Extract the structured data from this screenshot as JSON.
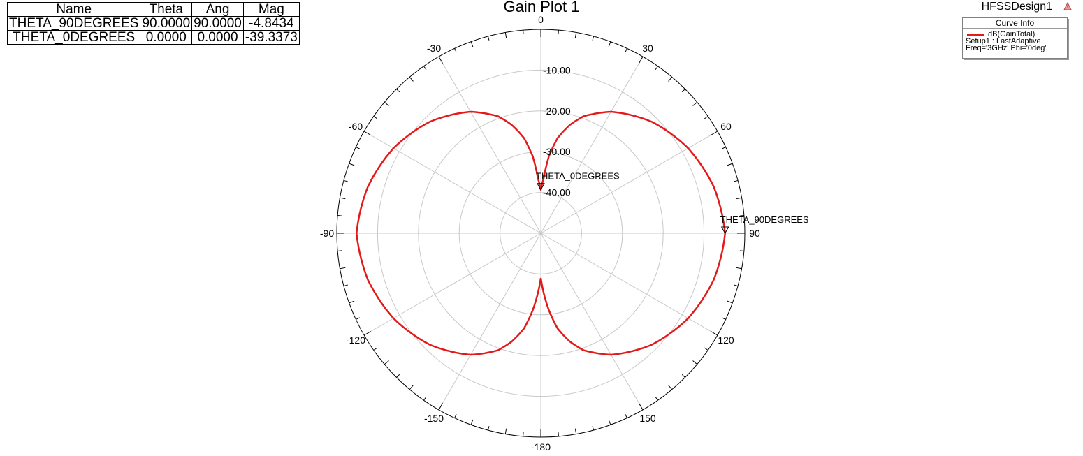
{
  "header": {
    "title": "Gain Plot 1",
    "design_name": "HFSSDesign1",
    "design_icon": "hfss-triangle-icon"
  },
  "marker_table": {
    "columns": [
      "Name",
      "Theta",
      "Ang",
      "Mag"
    ],
    "rows": [
      [
        "THETA_90DEGREES",
        "90.0000",
        "90.0000",
        "-4.8434"
      ],
      [
        "THETA_0DEGREES",
        "0.0000",
        "0.0000",
        "-39.3373"
      ]
    ]
  },
  "curve_info": {
    "header": "Curve Info",
    "curve_name": "dB(GainTotal)",
    "setup": "Setup1 : LastAdaptive",
    "freq": "Freq='3GHz' Phi='0deg'",
    "color": "#e31a1a"
  },
  "chart_data": {
    "type": "polar-line",
    "title": "Gain Plot 1",
    "radial_range": [
      -50,
      0
    ],
    "radial_ticks": [
      -40,
      -30,
      -20,
      -10
    ],
    "radial_tick_labels": [
      "-40.00",
      "-30.00",
      "-20.00",
      "-10.00"
    ],
    "angular_ticks": [
      0,
      30,
      60,
      90,
      120,
      150,
      180,
      -150,
      -120,
      -90,
      -60,
      -30
    ],
    "angular_tick_labels": [
      "0",
      "30",
      "60",
      "90",
      "120",
      "150",
      "-180",
      "-150",
      "-120",
      "-90",
      "-60",
      "-30"
    ],
    "grid": true,
    "series": [
      {
        "name": "dB(GainTotal)",
        "color": "#e31a1a",
        "theta_deg": [
          0,
          3,
          6,
          10,
          15,
          20,
          30,
          45,
          60,
          75,
          90,
          105,
          120,
          135,
          150,
          160,
          165,
          170,
          174,
          177,
          180
        ],
        "gain_db": [
          -39.3373,
          -36.5,
          -31.0,
          -26.3,
          -22.5,
          -19.5,
          -15.6,
          -11.4,
          -8.3,
          -6.1,
          -4.8434,
          -6.1,
          -8.3,
          -11.4,
          -15.6,
          -19.5,
          -22.5,
          -26.3,
          -31.0,
          -35.0,
          -39.0
        ]
      }
    ],
    "markers": [
      {
        "name": "THETA_0DEGREES",
        "theta": 0,
        "value": -39.3373
      },
      {
        "name": "THETA_90DEGREES",
        "theta": 90,
        "value": -4.8434
      }
    ]
  }
}
